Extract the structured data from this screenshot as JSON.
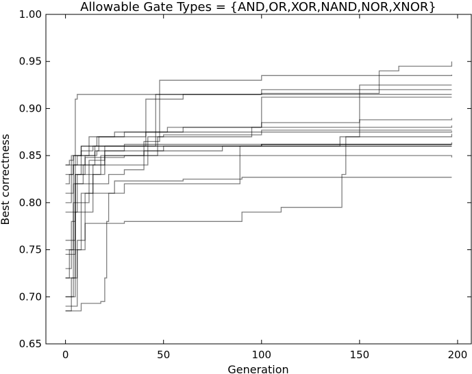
{
  "chart_data": {
    "type": "line",
    "title": "Allowable Gate Types = {AND,OR,XOR,NAND,NOR,XNOR}",
    "xlabel": "Generation",
    "ylabel": "Best correctness",
    "xlim": [
      -10,
      207
    ],
    "ylim": [
      0.65,
      1.0
    ],
    "xticks": [
      0,
      50,
      100,
      150,
      200
    ],
    "yticks": [
      0.65,
      0.7,
      0.75,
      0.8,
      0.85,
      0.9,
      0.95,
      1.0
    ],
    "xtick_labels": [
      "0",
      "50",
      "100",
      "150",
      "200"
    ],
    "ytick_labels": [
      "0.65",
      "0.70",
      "0.75",
      "0.80",
      "0.85",
      "0.90",
      "0.95",
      "1.00"
    ],
    "grid": false,
    "line_color": "#000000",
    "line_opacity": 0.5,
    "series": [
      {
        "x": [
          0,
          3,
          5,
          8,
          12,
          20,
          60,
          100,
          197
        ],
        "values": [
          0.73,
          0.78,
          0.83,
          0.85,
          0.86,
          0.86,
          0.86,
          0.86,
          0.86
        ]
      },
      {
        "x": [
          0,
          2,
          4,
          6,
          15,
          30,
          80,
          197
        ],
        "values": [
          0.82,
          0.83,
          0.84,
          0.85,
          0.855,
          0.86,
          0.86,
          0.86
        ]
      },
      {
        "x": [
          0,
          2,
          4,
          5,
          6,
          197
        ],
        "values": [
          0.72,
          0.75,
          0.8,
          0.91,
          0.915,
          0.915
        ]
      },
      {
        "x": [
          0,
          3,
          10,
          16,
          17,
          40,
          41,
          100,
          197
        ],
        "values": [
          0.8,
          0.84,
          0.85,
          0.855,
          0.87,
          0.87,
          0.875,
          0.877,
          0.877
        ]
      },
      {
        "x": [
          0,
          5,
          12,
          20,
          45,
          46,
          100,
          150,
          197
        ],
        "values": [
          0.745,
          0.82,
          0.83,
          0.86,
          0.86,
          0.915,
          0.92,
          0.925,
          0.925
        ]
      },
      {
        "x": [
          0,
          4,
          8,
          14,
          18,
          40,
          47,
          48,
          100,
          197
        ],
        "values": [
          0.7,
          0.75,
          0.81,
          0.83,
          0.85,
          0.85,
          0.87,
          0.93,
          0.935,
          0.936
        ]
      },
      {
        "x": [
          0,
          8,
          18,
          20,
          21,
          22,
          25,
          60,
          90,
          197
        ],
        "values": [
          0.685,
          0.693,
          0.695,
          0.72,
          0.78,
          0.81,
          0.823,
          0.825,
          0.827,
          0.827
        ]
      },
      {
        "x": [
          0,
          6,
          10,
          30,
          88,
          89,
          100,
          197
        ],
        "values": [
          0.69,
          0.75,
          0.81,
          0.82,
          0.82,
          0.86,
          0.862,
          0.862
        ]
      },
      {
        "x": [
          0,
          3,
          6,
          10,
          30,
          90,
          110,
          140,
          141,
          143,
          197
        ],
        "values": [
          0.685,
          0.72,
          0.76,
          0.778,
          0.78,
          0.79,
          0.795,
          0.795,
          0.83,
          0.87,
          0.873
        ]
      },
      {
        "x": [
          0,
          4,
          8,
          12,
          25,
          60,
          100,
          150,
          197
        ],
        "values": [
          0.83,
          0.85,
          0.86,
          0.87,
          0.875,
          0.88,
          0.885,
          0.888,
          0.89
        ]
      },
      {
        "x": [
          0,
          5,
          10,
          20,
          40,
          41,
          60,
          100,
          140,
          160,
          197
        ],
        "values": [
          0.76,
          0.83,
          0.84,
          0.85,
          0.86,
          0.91,
          0.915,
          0.916,
          0.916,
          0.92,
          0.92
        ]
      },
      {
        "x": [
          0,
          2,
          4,
          8,
          14,
          30,
          100,
          197
        ],
        "values": [
          0.84,
          0.845,
          0.85,
          0.855,
          0.86,
          0.862,
          0.862,
          0.862
        ]
      },
      {
        "x": [
          0,
          6,
          12,
          20,
          50,
          100,
          197
        ],
        "values": [
          0.79,
          0.83,
          0.845,
          0.855,
          0.86,
          0.862,
          0.864
        ]
      },
      {
        "x": [
          0,
          5,
          14,
          40,
          80,
          140,
          150,
          160,
          170,
          197
        ],
        "values": [
          0.72,
          0.79,
          0.84,
          0.855,
          0.86,
          0.87,
          0.92,
          0.94,
          0.945,
          0.95
        ]
      },
      {
        "x": [
          0,
          4,
          10,
          30,
          60,
          100,
          197
        ],
        "values": [
          0.81,
          0.84,
          0.848,
          0.85,
          0.85,
          0.85,
          0.848
        ]
      },
      {
        "x": [
          0,
          3,
          8,
          16,
          30,
          52,
          100,
          197
        ],
        "values": [
          0.84,
          0.85,
          0.86,
          0.87,
          0.875,
          0.88,
          0.88,
          0.882
        ]
      },
      {
        "x": [
          0,
          5,
          12,
          22,
          30,
          40,
          42,
          50,
          100,
          197
        ],
        "values": [
          0.7,
          0.8,
          0.82,
          0.83,
          0.835,
          0.84,
          0.87,
          0.872,
          0.875,
          0.876
        ]
      },
      {
        "x": [
          0,
          4,
          9,
          15,
          30,
          40,
          48,
          95,
          100,
          197
        ],
        "values": [
          0.75,
          0.82,
          0.84,
          0.86,
          0.86,
          0.865,
          0.87,
          0.88,
          0.912,
          0.912
        ]
      }
    ]
  }
}
